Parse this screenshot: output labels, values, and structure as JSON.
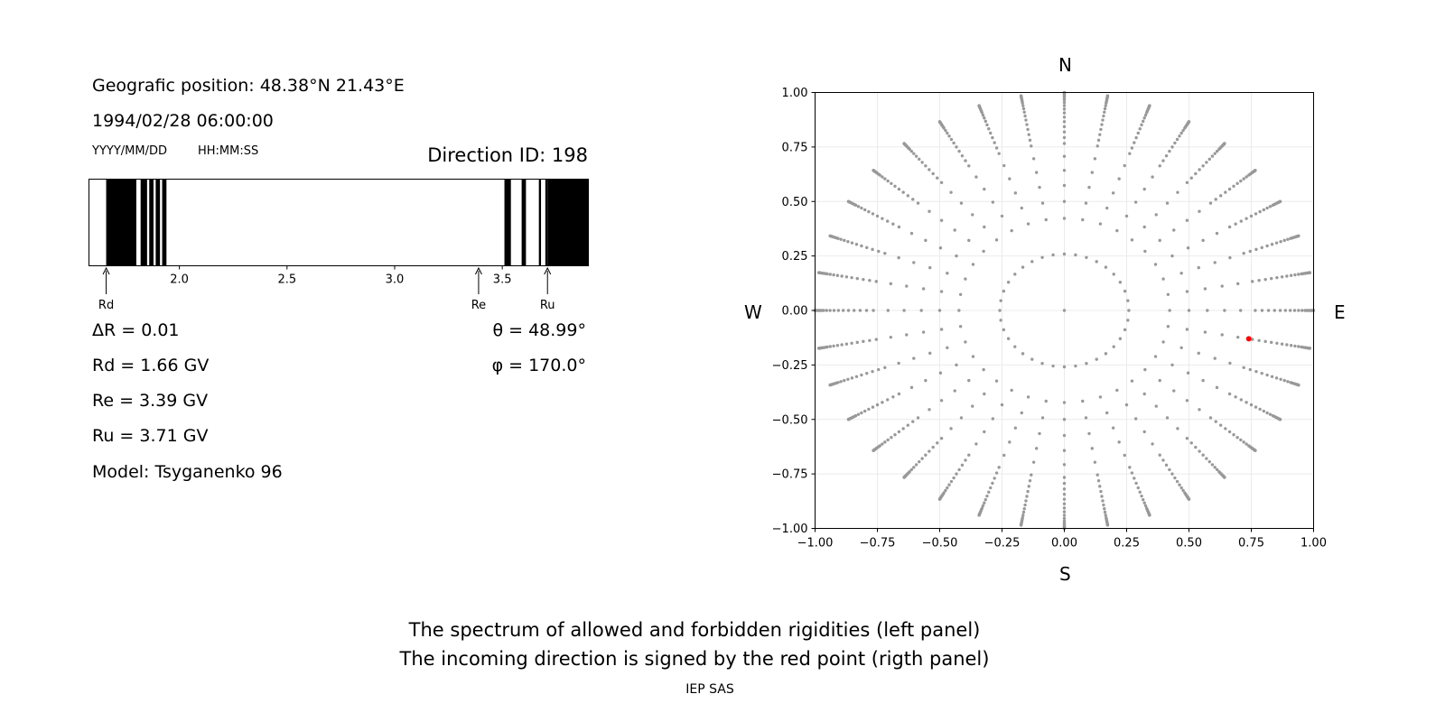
{
  "left_panel": {
    "position_line": "Geografic position: 48.38°N 21.43°E",
    "datetime": "1994/02/28 06:00:00",
    "date_format": "YYYY/MM/DD",
    "time_format": "HH:MM:SS",
    "direction_id": "Direction ID: 198",
    "delta_r": "ΔR = 0.01",
    "rd": "Rd = 1.66 GV",
    "re": "Re = 3.39 GV",
    "ru": "Ru = 3.71 GV",
    "model": "Model: Tsyganenko 96",
    "theta": "θ = 48.99°",
    "phi": "φ = 170.0°"
  },
  "right_panel": {
    "north": "N",
    "south": "S",
    "west": "W",
    "east": "E"
  },
  "caption": {
    "line1": "The spectrum of allowed and forbidden rigidities (left panel)",
    "line2": "The incoming direction is signed by the red point (rigth panel)",
    "credit": "IEP SAS"
  },
  "chart_data": [
    {
      "type": "bar",
      "xlim": [
        1.58,
        3.9
      ],
      "ticks": [
        2.0,
        2.5,
        3.0,
        3.5
      ],
      "tick_labels": [
        "2.0",
        "2.5",
        "3.0",
        "3.5"
      ],
      "forbidden_bands": [
        [
          1.66,
          1.8
        ],
        [
          1.82,
          1.85
        ],
        [
          1.86,
          1.88
        ],
        [
          1.89,
          1.91
        ],
        [
          1.92,
          1.94
        ],
        [
          3.51,
          3.54
        ],
        [
          3.59,
          3.61
        ],
        [
          3.67,
          3.68
        ],
        [
          3.7,
          3.71
        ],
        [
          3.71,
          3.9
        ]
      ],
      "markers": [
        {
          "label": "Rd",
          "value": 1.66
        },
        {
          "label": "Re",
          "value": 3.39
        },
        {
          "label": "Ru",
          "value": 3.71
        }
      ],
      "colors": {
        "forbidden": "#000000",
        "allowed": "#ffffff"
      }
    },
    {
      "type": "scatter",
      "xlim": [
        -1.0,
        1.0
      ],
      "ylim": [
        -1.0,
        1.0
      ],
      "x_tick_labels": [
        "−1.00",
        "−0.75",
        "−0.50",
        "−0.25",
        "0.00",
        "0.25",
        "0.50",
        "0.75",
        "1.00"
      ],
      "y_tick_labels": [
        "−1.00",
        "−0.75",
        "−0.50",
        "−0.25",
        "0.00",
        "0.25",
        "0.50",
        "0.75",
        "1.00"
      ],
      "grid": true,
      "direction_grid": {
        "zenith_angles_deg": [
          0,
          15,
          25,
          30,
          35,
          40,
          45,
          50,
          52.5,
          55,
          57.5,
          60,
          62.5,
          65,
          67.5,
          70,
          72.5,
          75,
          76.5,
          78,
          79.5,
          81,
          82.5,
          84,
          85.5,
          87,
          88.5,
          90
        ],
        "azimuth_step_deg": 10,
        "projection": "sin(zenith)",
        "color": "#999999"
      },
      "highlight": {
        "x": 0.74,
        "y": -0.13,
        "color": "#ff0000"
      }
    }
  ]
}
